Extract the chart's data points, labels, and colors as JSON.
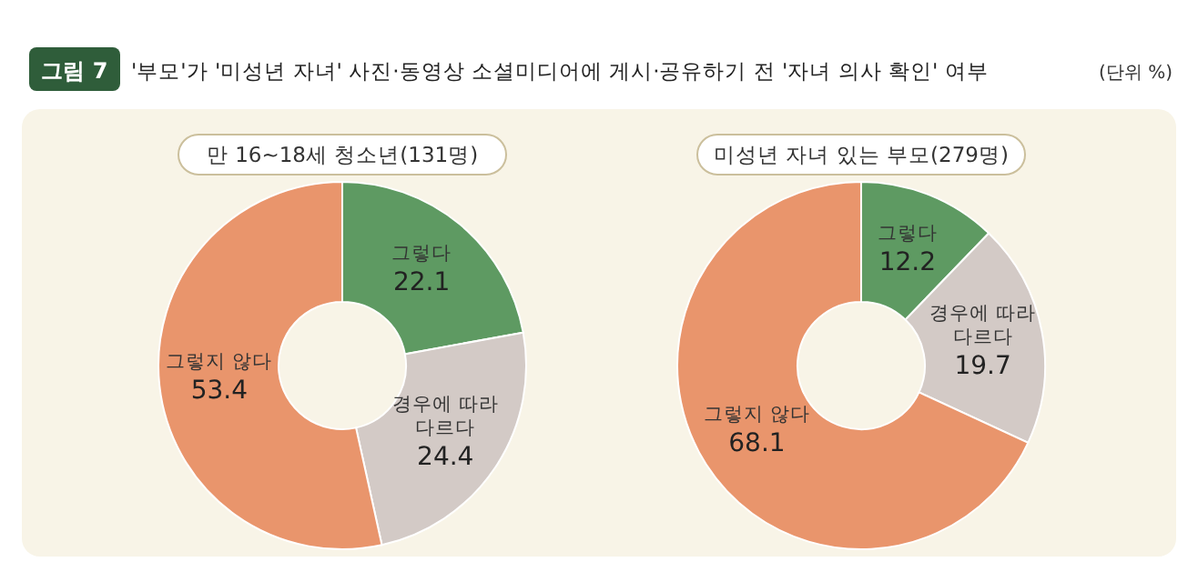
{
  "chart_data": [
    {
      "type": "donut",
      "title": "'부모'가 '미성년 자녀' 사진·동영상 소셜미디어에 게시·공유하기 전 '자녀 의사 확인' 여부",
      "annotations": [
        "그림 7",
        "(단위 %)"
      ],
      "subtitle": "만 16~18세 청소년(131명)",
      "categories": [
        "그렇다",
        "경우에 따라 다르다",
        "그렇지 않다"
      ],
      "values": [
        22.1,
        24.4,
        53.4
      ],
      "colors": [
        "#5e9a62",
        "#d3cac6",
        "#e9956c"
      ],
      "data_labels": true
    },
    {
      "type": "donut",
      "subtitle": "미성년 자녀 있는 부모(279명)",
      "categories": [
        "그렇다",
        "경우에 따라 다르다",
        "그렇지 않다"
      ],
      "values": [
        12.2,
        19.7,
        68.1
      ],
      "colors": [
        "#5e9a62",
        "#d3cac6",
        "#e9956c"
      ],
      "data_labels": true
    }
  ]
}
